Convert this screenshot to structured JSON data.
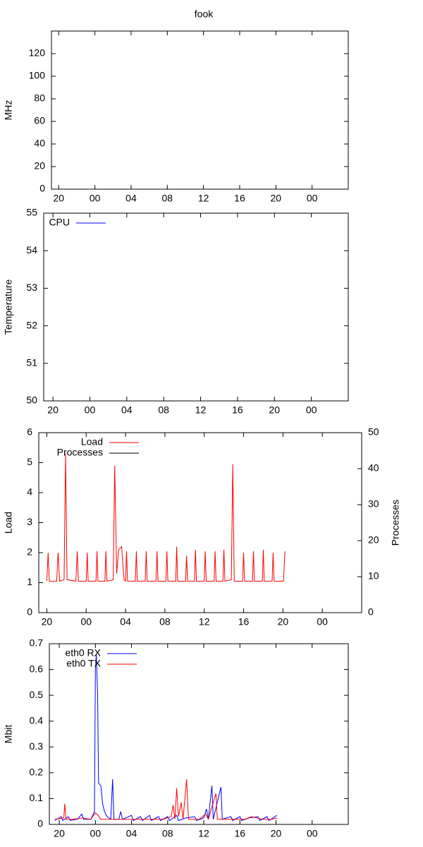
{
  "chart_data": [
    {
      "type": "line",
      "title": "fook",
      "ylabel": "MHz",
      "series": [],
      "xlim": [
        19.2,
        52
      ],
      "xticks": [
        {
          "value": 20,
          "label": "20"
        },
        {
          "value": 24,
          "label": "00"
        },
        {
          "value": 28,
          "label": "04"
        },
        {
          "value": 32,
          "label": "08"
        },
        {
          "value": 36,
          "label": "12"
        },
        {
          "value": 40,
          "label": "16"
        },
        {
          "value": 44,
          "label": "20"
        },
        {
          "value": 48,
          "label": "00"
        }
      ],
      "ylim": [
        0,
        140
      ],
      "yticks": [
        0,
        20,
        40,
        60,
        80,
        100,
        120
      ]
    },
    {
      "type": "line",
      "ylabel": "Temperature",
      "legend": "top left",
      "series": [
        {
          "name": "CPU",
          "color": "#0000ff",
          "x": [],
          "values": []
        }
      ],
      "xlim": [
        19,
        52
      ],
      "xticks": [
        {
          "value": 20,
          "label": "20"
        },
        {
          "value": 24,
          "label": "00"
        },
        {
          "value": 28,
          "label": "04"
        },
        {
          "value": 32,
          "label": "08"
        },
        {
          "value": 36,
          "label": "12"
        },
        {
          "value": 40,
          "label": "16"
        },
        {
          "value": 44,
          "label": "20"
        },
        {
          "value": 48,
          "label": "00"
        }
      ],
      "ylim": [
        50,
        55
      ],
      "yticks": [
        50,
        51,
        52,
        53,
        54,
        55
      ]
    },
    {
      "type": "line",
      "ylabel": "Load",
      "y2label": "Processes",
      "legend": "top left",
      "series": [
        {
          "name": "Load",
          "color": "#ff0000",
          "x": [
            20.0,
            20.13,
            20.25,
            21.0,
            21.14,
            21.3,
            21.75,
            21.9,
            22.05,
            22.95,
            23.09,
            23.2,
            24.0,
            24.1,
            24.2,
            25.0,
            25.1,
            25.2,
            25.9,
            26.0,
            26.1,
            26.75,
            26.9,
            27.1,
            27.3,
            27.6,
            27.85,
            28.0,
            28.1,
            28.2,
            29.0,
            29.1,
            29.2,
            30.0,
            30.1,
            30.2,
            31.1,
            31.2,
            31.3,
            32.1,
            32.2,
            32.3,
            33.1,
            33.2,
            33.3,
            34.1,
            34.2,
            34.3,
            35.0,
            35.1,
            35.2,
            36.0,
            36.1,
            36.2,
            37.0,
            37.1,
            37.2,
            37.9,
            38.0,
            38.1,
            38.75,
            38.9,
            39.05,
            39.9,
            40.0,
            40.1,
            40.9,
            41.0,
            41.1,
            41.9,
            42.0,
            42.1,
            42.9,
            43.0,
            43.1,
            44.05,
            44.2
          ],
          "values": [
            1.05,
            2.0,
            1.05,
            1.05,
            2.0,
            1.05,
            1.1,
            5.3,
            1.1,
            1.05,
            2.05,
            1.05,
            1.05,
            2.0,
            1.05,
            1.05,
            2.05,
            1.05,
            1.05,
            2.05,
            1.05,
            1.1,
            4.9,
            1.3,
            2.1,
            2.2,
            1.1,
            1.05,
            2.05,
            1.05,
            1.05,
            2.05,
            1.05,
            1.05,
            2.05,
            1.05,
            1.05,
            2.05,
            1.05,
            1.05,
            2.05,
            1.05,
            1.05,
            2.2,
            1.05,
            1.05,
            1.9,
            1.05,
            1.05,
            2.1,
            1.05,
            1.05,
            2.05,
            1.05,
            1.05,
            2.05,
            1.05,
            1.05,
            2.1,
            1.05,
            1.1,
            4.95,
            1.05,
            1.05,
            2.0,
            1.05,
            1.05,
            2.05,
            1.05,
            1.05,
            2.1,
            1.05,
            1.05,
            2.0,
            1.05,
            1.05,
            2.05
          ]
        },
        {
          "name": "Processes",
          "color": "#000000",
          "axis": "y2",
          "x": [],
          "values": []
        }
      ],
      "xlim": [
        19.18,
        52
      ],
      "xticks": [
        {
          "value": 20,
          "label": "20"
        },
        {
          "value": 24,
          "label": "00"
        },
        {
          "value": 28,
          "label": "04"
        },
        {
          "value": 32,
          "label": "08"
        },
        {
          "value": 36,
          "label": "12"
        },
        {
          "value": 40,
          "label": "16"
        },
        {
          "value": 44,
          "label": "20"
        },
        {
          "value": 48,
          "label": "00"
        }
      ],
      "ylim": [
        0,
        6
      ],
      "yticks": [
        0,
        1,
        2,
        3,
        4,
        5,
        6
      ],
      "y2lim": [
        0,
        50
      ],
      "y2ticks": [
        0,
        10,
        20,
        30,
        40,
        50
      ]
    },
    {
      "type": "line",
      "ylabel": "Mbit",
      "legend": "top left",
      "series": [
        {
          "name": "eth0 RX",
          "color": "#0000ff",
          "x": [
            19.5,
            20.2,
            20.4,
            21.0,
            21.2,
            22.0,
            22.5,
            22.7,
            23.5,
            23.9,
            24.0,
            24.1,
            24.25,
            24.35,
            24.6,
            24.8,
            25.0,
            25.3,
            25.7,
            25.9,
            26.05,
            26.6,
            26.8,
            27.0,
            28.0,
            28.2,
            29.0,
            29.2,
            30.0,
            30.2,
            31.0,
            31.2,
            32.0,
            32.2,
            33.0,
            33.2,
            34.0,
            35.0,
            35.2,
            36.0,
            36.3,
            36.5,
            36.9,
            37.05,
            37.9,
            38.05,
            39.0,
            39.2,
            40.0,
            40.2,
            41.0,
            42.0,
            42.2,
            43.0,
            43.2,
            44.1
          ],
          "values": [
            0.015,
            0.03,
            0.015,
            0.03,
            0.015,
            0.02,
            0.04,
            0.02,
            0.02,
            0.05,
            0.6,
            0.66,
            0.5,
            0.16,
            0.15,
            0.08,
            0.05,
            0.03,
            0.02,
            0.175,
            0.02,
            0.02,
            0.05,
            0.02,
            0.035,
            0.015,
            0.03,
            0.015,
            0.035,
            0.015,
            0.03,
            0.015,
            0.03,
            0.015,
            0.035,
            0.015,
            0.025,
            0.03,
            0.015,
            0.025,
            0.06,
            0.02,
            0.15,
            0.02,
            0.145,
            0.02,
            0.03,
            0.015,
            0.03,
            0.015,
            0.025,
            0.03,
            0.015,
            0.03,
            0.015,
            0.035
          ]
        },
        {
          "name": "eth0 TX",
          "color": "#ff0000",
          "x": [
            19.5,
            20.5,
            20.6,
            20.75,
            21.5,
            22.5,
            23.5,
            24.0,
            24.3,
            24.6,
            25.5,
            26.5,
            27.5,
            28.5,
            29.5,
            30.5,
            31.5,
            32.4,
            32.6,
            32.8,
            33.0,
            33.2,
            33.5,
            33.7,
            34.1,
            34.3,
            35.5,
            36.2,
            36.5,
            37.35,
            37.5,
            38.5,
            39.5,
            40.5,
            41.3,
            42.5,
            43.5,
            44.1
          ],
          "values": [
            0.02,
            0.025,
            0.08,
            0.02,
            0.02,
            0.025,
            0.02,
            0.045,
            0.035,
            0.02,
            0.02,
            0.02,
            0.02,
            0.02,
            0.02,
            0.02,
            0.02,
            0.03,
            0.075,
            0.02,
            0.14,
            0.03,
            0.085,
            0.02,
            0.175,
            0.02,
            0.02,
            0.04,
            0.02,
            0.12,
            0.02,
            0.02,
            0.02,
            0.02,
            0.03,
            0.02,
            0.02,
            0.025
          ]
        }
      ],
      "xlim": [
        18.9,
        52
      ],
      "xticks": [
        {
          "value": 20,
          "label": "20"
        },
        {
          "value": 24,
          "label": "00"
        },
        {
          "value": 28,
          "label": "04"
        },
        {
          "value": 32,
          "label": "08"
        },
        {
          "value": 36,
          "label": "12"
        },
        {
          "value": 40,
          "label": "16"
        },
        {
          "value": 44,
          "label": "20"
        },
        {
          "value": 48,
          "label": "00"
        }
      ],
      "ylim": [
        0,
        0.7
      ],
      "yticks": [
        0,
        0.1,
        0.2,
        0.3,
        0.4,
        0.5,
        0.6,
        0.7
      ]
    }
  ]
}
